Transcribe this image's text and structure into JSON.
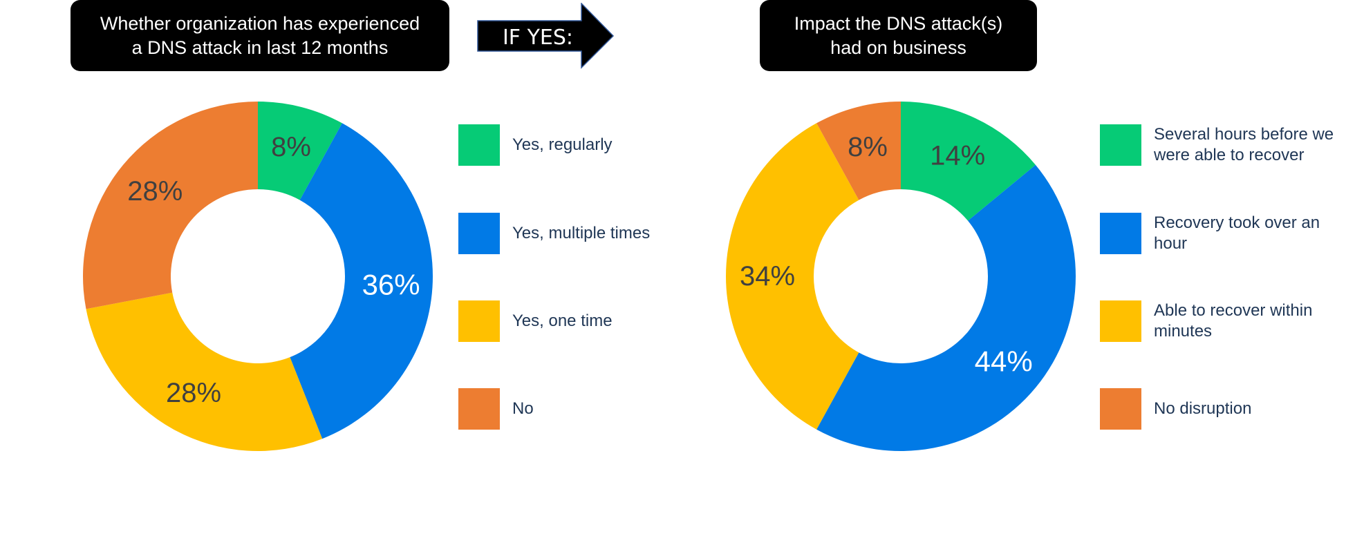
{
  "chart_data": [
    {
      "type": "pie",
      "title": "Whether organization has experienced\na DNS attack in last 12 months",
      "donut": true,
      "slices": [
        {
          "label": "Yes, regularly",
          "value": 8,
          "display": "8%",
          "color": "#06cb76",
          "label_color": "#404040"
        },
        {
          "label": "Yes, multiple times",
          "value": 36,
          "display": "36%",
          "color": "#017ae6",
          "label_color": "#ffffff"
        },
        {
          "label": "Yes, one time",
          "value": 28,
          "display": "28%",
          "color": "#ffc000",
          "label_color": "#404040"
        },
        {
          "label": "No",
          "value": 28,
          "display": "28%",
          "color": "#ed7d31",
          "label_color": "#404040"
        }
      ],
      "legend_placement": "right"
    },
    {
      "type": "pie",
      "title": "Impact the DNS attack(s)\nhad on business",
      "donut": true,
      "slices": [
        {
          "label": "Several hours before we\nwere able to recover",
          "value": 14,
          "display": "14%",
          "color": "#06cb76",
          "label_color": "#404040"
        },
        {
          "label": "Recovery took over an\nhour",
          "value": 44,
          "display": "44%",
          "color": "#017ae6",
          "label_color": "#ffffff"
        },
        {
          "label": "Able to recover within\nminutes",
          "value": 34,
          "display": "34%",
          "color": "#ffc000",
          "label_color": "#404040"
        },
        {
          "label": "No disruption",
          "value": 8,
          "display": "8%",
          "color": "#ed7d31",
          "label_color": "#404040"
        }
      ],
      "legend_placement": "right"
    }
  ],
  "connector": {
    "label": "IF YES:",
    "icon": "right-arrow-icon"
  }
}
